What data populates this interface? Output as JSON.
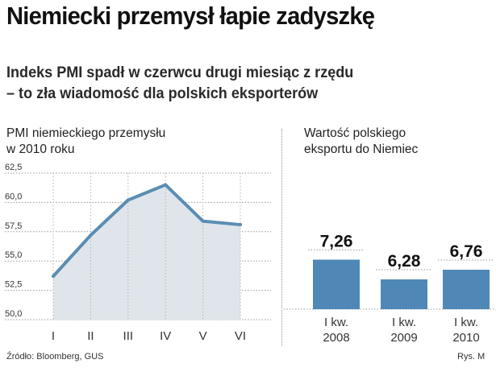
{
  "headline": "Niemiecki przemysł łapie zadyszkę",
  "subtitle": {
    "line1": "Indeks PMI spadł w czerwcu drugi miesiąc z rzędu",
    "line2": "– to zła wiadomość dla polskich eksporterów"
  },
  "colors": {
    "line": "#5b8db3",
    "area": "#dfe5ea",
    "bar": "#4f88b6",
    "grid": "#9a9a9a"
  },
  "chart_data": [
    {
      "type": "area",
      "title_line1": "PMI niemieckiego przemysłu",
      "title_line2": "w 2010 roku",
      "categories": [
        "I",
        "II",
        "III",
        "IV",
        "V",
        "VI"
      ],
      "values": [
        53.7,
        57.2,
        60.2,
        61.5,
        58.4,
        58.1
      ],
      "yticks": [
        "62,5",
        "60,0",
        "57,5",
        "55,0",
        "52,5",
        "50,0"
      ],
      "ylim": [
        50,
        62.5
      ],
      "grid": true
    },
    {
      "type": "bar",
      "title_line1": "Wartość polskiego",
      "title_line2": "eksportu do Niemiec",
      "categories": [
        {
          "line1": "I kw.",
          "line2": "2008"
        },
        {
          "line1": "I kw.",
          "line2": "2009"
        },
        {
          "line1": "I kw.",
          "line2": "2010"
        }
      ],
      "values": [
        7.26,
        6.28,
        6.76
      ],
      "labels": [
        "7,26",
        "6,28",
        "6,76"
      ],
      "ylim": [
        0,
        8
      ]
    }
  ],
  "footer": {
    "source": "Źródło: Bloomberg, GUS",
    "credit": "Rys. M"
  }
}
